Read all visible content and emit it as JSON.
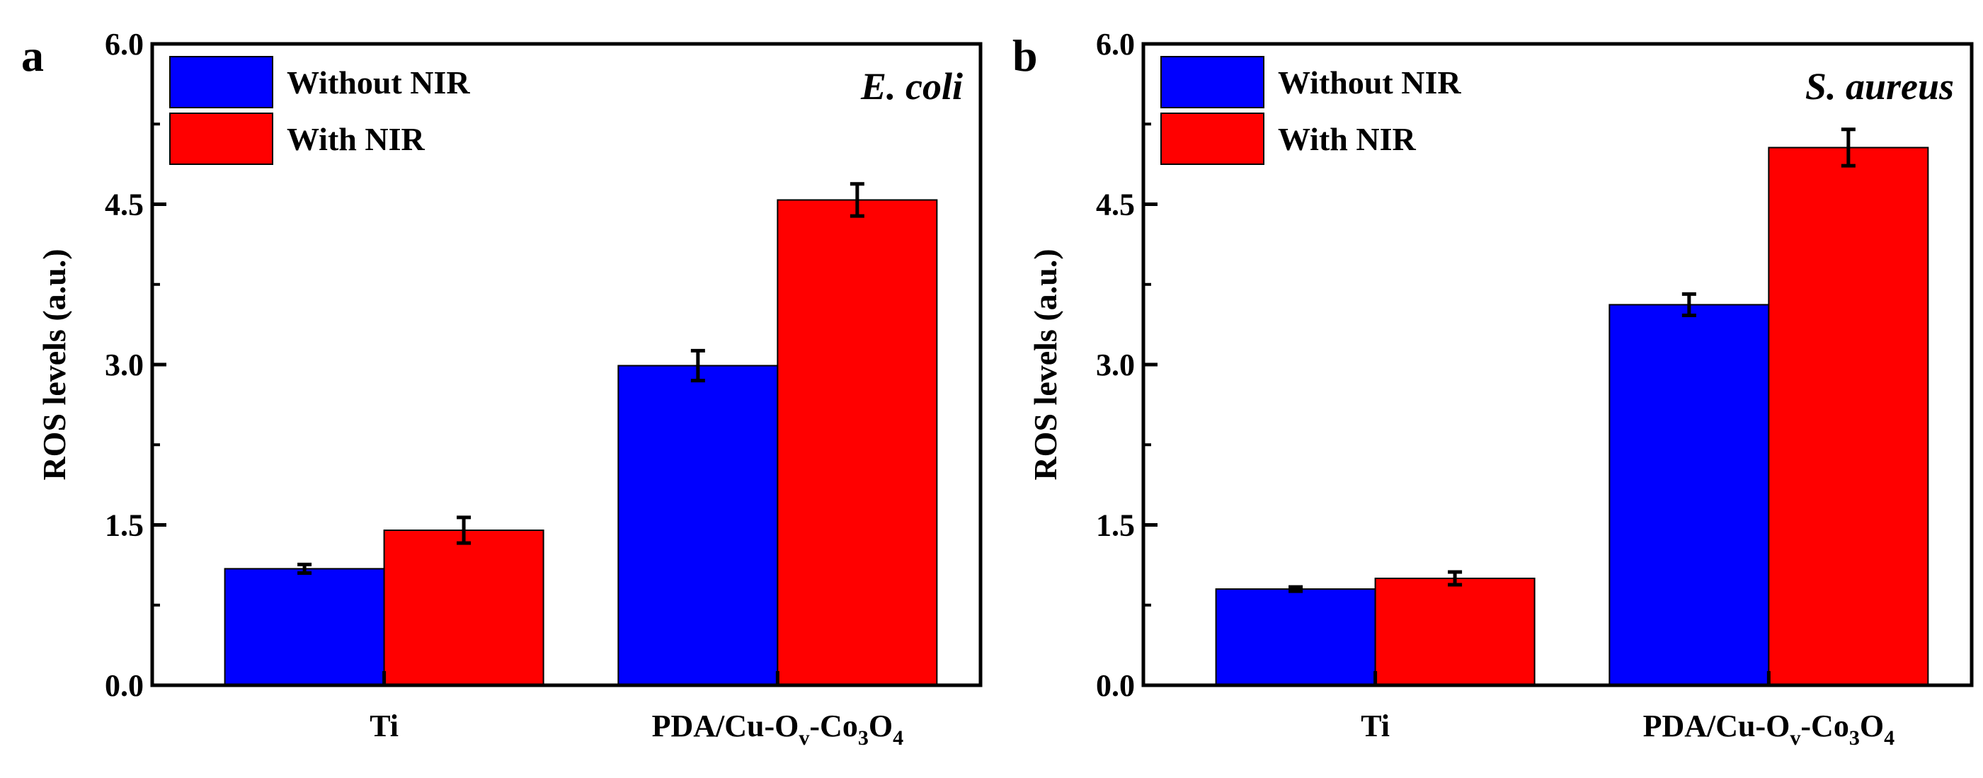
{
  "chart_data": [
    {
      "type": "bar",
      "panel_label": "a",
      "annotation": "E. coli",
      "ylabel": "ROS levels (a.u.)",
      "ylim": [
        0,
        6.0
      ],
      "yticks": [
        "0.0",
        "1.5",
        "3.0",
        "4.5",
        "6.0"
      ],
      "categories": [
        {
          "main": "Ti",
          "pre": "",
          "s1": "",
          "mid": "",
          "s2": "",
          "mid2": "",
          "s3": ""
        },
        {
          "main": "",
          "pre": "PDA/Cu-O",
          "s1": "v",
          "mid": "-Co",
          "s2": "3",
          "mid2": "O",
          "s3": "4"
        }
      ],
      "series": [
        {
          "name": "Without NIR",
          "color": "#0000ff",
          "values": [
            1.09,
            2.99
          ],
          "errors": [
            0.04,
            0.14
          ]
        },
        {
          "name": "With NIR",
          "color": "#ff0000",
          "values": [
            1.45,
            4.54
          ],
          "errors": [
            0.12,
            0.15
          ]
        }
      ],
      "grid": false,
      "legend": "top-left"
    },
    {
      "type": "bar",
      "panel_label": "b",
      "annotation": "S. aureus",
      "ylabel": "ROS levels (a.u.)",
      "ylim": [
        0,
        6.0
      ],
      "yticks": [
        "0.0",
        "1.5",
        "3.0",
        "4.5",
        "6.0"
      ],
      "categories": [
        {
          "main": "Ti",
          "pre": "",
          "s1": "",
          "mid": "",
          "s2": "",
          "mid2": "",
          "s3": ""
        },
        {
          "main": "",
          "pre": "PDA/Cu-O",
          "s1": "v",
          "mid": "-Co",
          "s2": "3",
          "mid2": "O",
          "s3": "4"
        }
      ],
      "series": [
        {
          "name": "Without NIR",
          "color": "#0000ff",
          "values": [
            0.9,
            3.56
          ],
          "errors": [
            0.02,
            0.1
          ]
        },
        {
          "name": "With NIR",
          "color": "#ff0000",
          "values": [
            1.0,
            5.03
          ],
          "errors": [
            0.06,
            0.17
          ]
        }
      ],
      "grid": false,
      "legend": "top-left"
    }
  ]
}
